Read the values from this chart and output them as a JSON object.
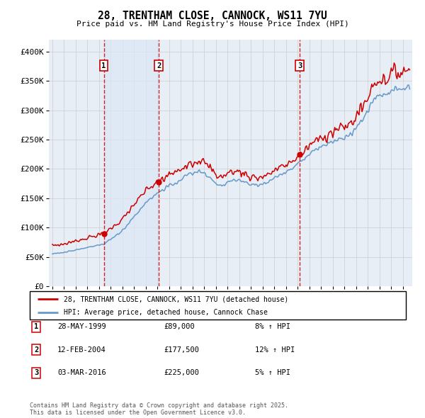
{
  "title": "28, TRENTHAM CLOSE, CANNOCK, WS11 7YU",
  "subtitle": "Price paid vs. HM Land Registry's House Price Index (HPI)",
  "legend_line1": "28, TRENTHAM CLOSE, CANNOCK, WS11 7YU (detached house)",
  "legend_line2": "HPI: Average price, detached house, Cannock Chase",
  "sale1_label": "28-MAY-1999",
  "sale1_price": 89000,
  "sale1_pct": "8% ↑ HPI",
  "sale1_yr": 1999.4,
  "sale2_label": "12-FEB-2004",
  "sale2_price": 177500,
  "sale2_pct": "12% ↑ HPI",
  "sale2_yr": 2004.1,
  "sale3_label": "03-MAR-2016",
  "sale3_price": 225000,
  "sale3_pct": "5% ↑ HPI",
  "sale3_yr": 2016.17,
  "footer": "Contains HM Land Registry data © Crown copyright and database right 2025.\nThis data is licensed under the Open Government Licence v3.0.",
  "line_color_red": "#cc0000",
  "line_color_blue": "#6699cc",
  "shade_color": "#dce8f5",
  "bg_color": "#e8eef5",
  "plot_bg": "#ffffff",
  "ylim_min": 0,
  "ylim_max": 420000,
  "dashed_color": "#cc0000",
  "number_box_color": "#cc0000",
  "yticks": [
    0,
    50000,
    100000,
    150000,
    200000,
    250000,
    300000,
    350000,
    400000
  ]
}
